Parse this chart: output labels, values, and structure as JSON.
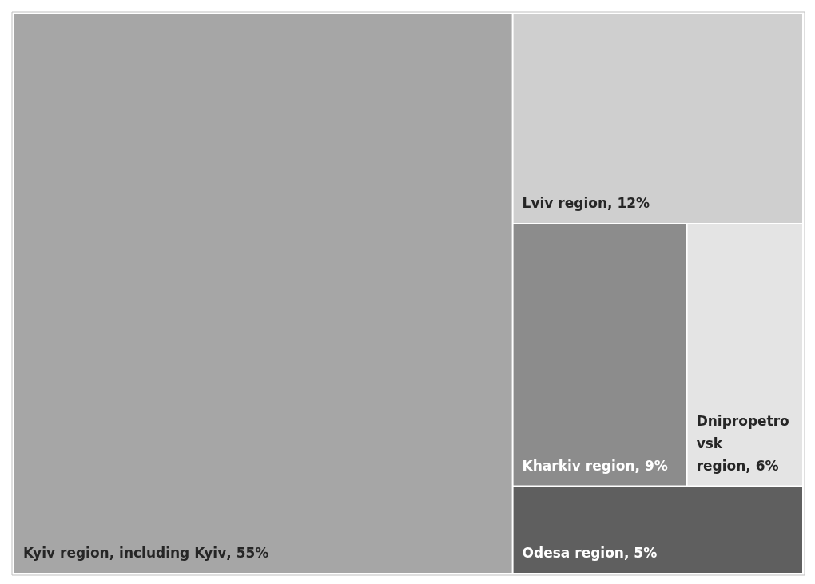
{
  "chart_data": {
    "type": "other",
    "categories": [
      "Kyiv region, including Kyiv",
      "Lviv region",
      "Kharkiv region",
      "Dnipropetrovsk region",
      "Odesa region"
    ],
    "values": [
      55,
      12,
      9,
      6,
      5
    ],
    "value_labels": [
      ", 55%",
      ", 12%",
      ", 9%",
      ", 6%",
      ", 5%"
    ],
    "colors": [
      "#a6a6a6",
      "#cfcfcf",
      "#8c8c8c",
      "#e4e4e4",
      "#5f5f5f"
    ],
    "legend": false
  }
}
